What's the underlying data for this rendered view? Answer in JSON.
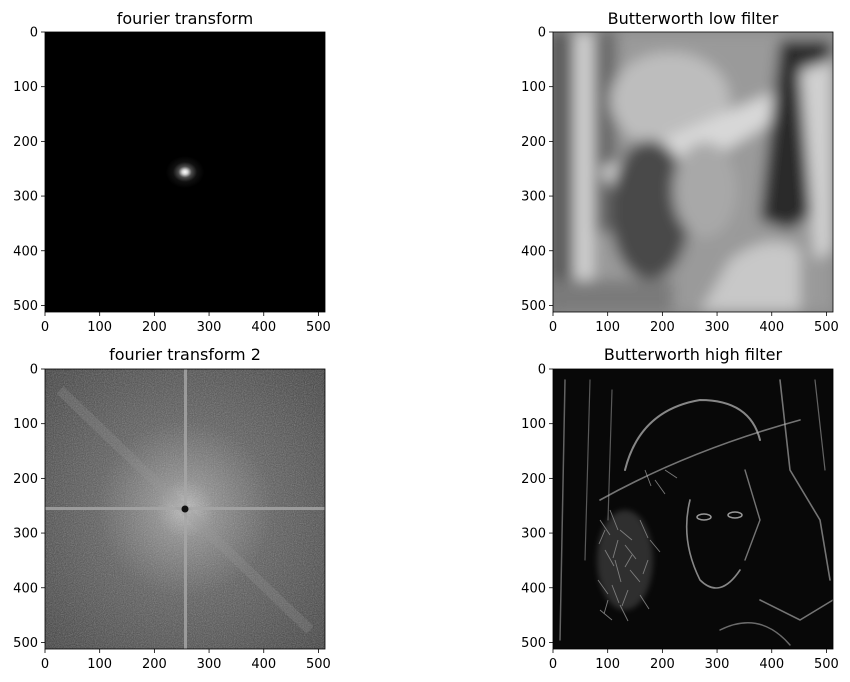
{
  "figure": {
    "panels": [
      {
        "title": "fourier transform",
        "kind": "fourier-spectrum"
      },
      {
        "title": "Butterworth low filter",
        "kind": "blurred-portrait"
      },
      {
        "title": "fourier transform 2",
        "kind": "fourier-spectrum-log"
      },
      {
        "title": "Butterworth high filter",
        "kind": "edge-portrait"
      }
    ]
  },
  "chart_data": [
    {
      "type": "heatmap",
      "title": "fourier transform",
      "xlim": [
        0,
        512
      ],
      "ylim": [
        512,
        0
      ],
      "xticks": [
        0,
        100,
        200,
        300,
        400,
        500
      ],
      "yticks": [
        0,
        100,
        200,
        300,
        400,
        500
      ],
      "colormap": "gray",
      "grid": false,
      "description_values": {
        "peak_center": [
          256,
          256
        ]
      }
    },
    {
      "type": "heatmap",
      "title": "Butterworth low filter",
      "xlim": [
        0,
        512
      ],
      "ylim": [
        512,
        0
      ],
      "xticks": [
        0,
        100,
        200,
        300,
        400,
        500
      ],
      "yticks": [
        0,
        100,
        200,
        300,
        400,
        500
      ],
      "colormap": "gray",
      "grid": false
    },
    {
      "type": "heatmap",
      "title": "fourier transform 2",
      "xlim": [
        0,
        512
      ],
      "ylim": [
        512,
        0
      ],
      "xticks": [
        0,
        100,
        200,
        300,
        400,
        500
      ],
      "yticks": [
        0,
        100,
        200,
        300,
        400,
        500
      ],
      "colormap": "gray",
      "grid": false
    },
    {
      "type": "heatmap",
      "title": "Butterworth high filter",
      "xlim": [
        0,
        512
      ],
      "ylim": [
        512,
        0
      ],
      "xticks": [
        0,
        100,
        200,
        300,
        400,
        500
      ],
      "yticks": [
        0,
        100,
        200,
        300,
        400,
        500
      ],
      "colormap": "gray",
      "grid": false
    }
  ]
}
